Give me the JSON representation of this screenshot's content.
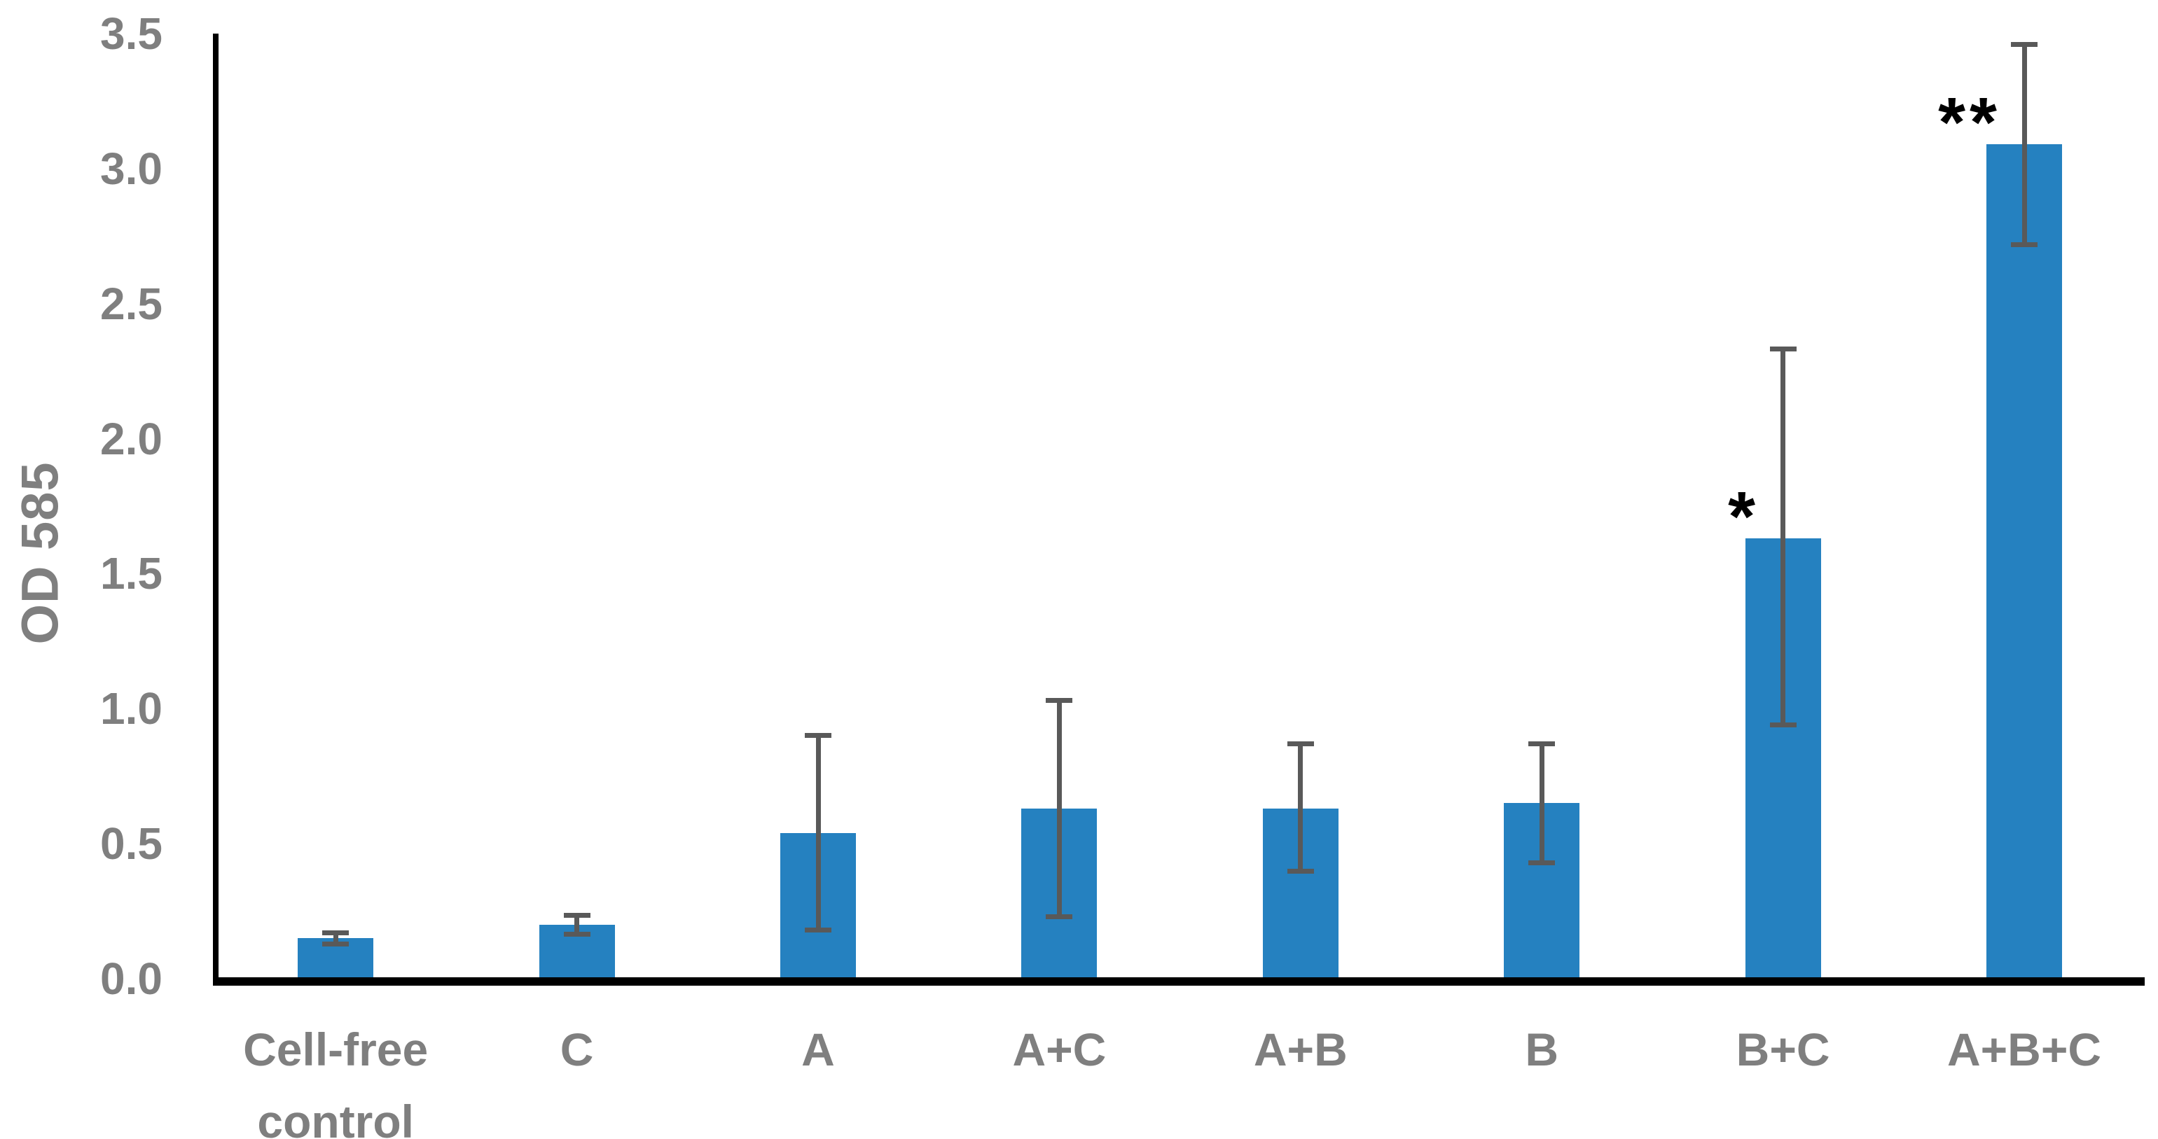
{
  "chart_data": {
    "type": "bar",
    "title": "",
    "xlabel": "",
    "ylabel": "OD 585",
    "ylim": [
      0.0,
      3.5
    ],
    "ytick_step": 0.5,
    "ytick_labels": [
      "0.0",
      "0.5",
      "1.0",
      "1.5",
      "2.0",
      "2.5",
      "3.0",
      "3.5"
    ],
    "grid": false,
    "legend": null,
    "categories": [
      "Cell-free control",
      "C",
      "A",
      "A+C",
      "A+B",
      "B",
      "B+C",
      "A+B+C"
    ],
    "values": [
      0.15,
      0.2,
      0.54,
      0.63,
      0.63,
      0.65,
      1.63,
      3.09
    ],
    "error_low": [
      0.12,
      0.155,
      0.17,
      0.22,
      0.39,
      0.42,
      0.93,
      2.71
    ],
    "error_high": [
      0.18,
      0.245,
      0.91,
      1.04,
      0.88,
      0.88,
      2.34,
      3.47
    ],
    "annotations": [
      "",
      "",
      "",
      "",
      "",
      "",
      "*",
      "**"
    ],
    "colors": {
      "bar": "#2581c0",
      "error_bar": "#595959",
      "axis_line": "#000000",
      "tick_text": "#7f7f7f",
      "category_text": "#7f7f7f",
      "annotation_text": "#000000"
    }
  }
}
